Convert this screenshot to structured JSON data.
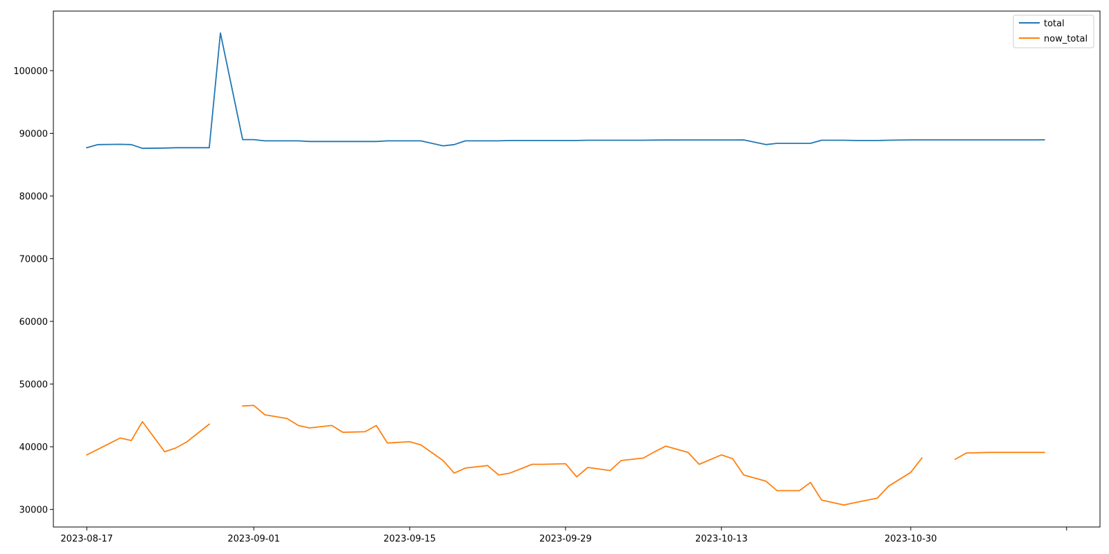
{
  "chart_data": {
    "type": "line",
    "title": "",
    "xlabel": "",
    "ylabel": "",
    "x_axis_type": "date",
    "ylim": [
      27200,
      109500
    ],
    "xlim": [
      "2023-08-14",
      "2023-11-16"
    ],
    "grid": false,
    "legend_position": "top-right",
    "x_ticks": [
      "2023-08-17",
      "2023-09-01",
      "2023-09-15",
      "2023-09-29",
      "2023-10-13",
      "2023-10-30"
    ],
    "y_ticks": [
      30000,
      40000,
      50000,
      60000,
      70000,
      80000,
      90000,
      100000
    ],
    "x": [
      "2023-08-17",
      "2023-08-18",
      "2023-08-20",
      "2023-08-21",
      "2023-08-22",
      "2023-08-24",
      "2023-08-25",
      "2023-08-26",
      "2023-08-28",
      "2023-08-29",
      "2023-08-31",
      "2023-09-01",
      "2023-09-02",
      "2023-09-04",
      "2023-09-05",
      "2023-09-06",
      "2023-09-08",
      "2023-09-09",
      "2023-09-11",
      "2023-09-12",
      "2023-09-13",
      "2023-09-15",
      "2023-09-16",
      "2023-09-18",
      "2023-09-19",
      "2023-09-20",
      "2023-09-22",
      "2023-09-23",
      "2023-09-24",
      "2023-09-26",
      "2023-09-27",
      "2023-09-29",
      "2023-09-30",
      "2023-10-01",
      "2023-10-03",
      "2023-10-04",
      "2023-10-06",
      "2023-10-07",
      "2023-10-08",
      "2023-10-10",
      "2023-10-11",
      "2023-10-13",
      "2023-10-14",
      "2023-10-15",
      "2023-10-17",
      "2023-10-18",
      "2023-10-20",
      "2023-10-21",
      "2023-10-22",
      "2023-10-24",
      "2023-10-25",
      "2023-10-27",
      "2023-10-28",
      "2023-10-30",
      "2023-10-31",
      "2023-11-01",
      "2023-11-03",
      "2023-11-04",
      "2023-11-06",
      "2023-11-07",
      "2023-11-08",
      "2023-11-10",
      "2023-11-11"
    ],
    "series": [
      {
        "name": "total",
        "color": "#1f77b4",
        "values": [
          87700,
          88200,
          88250,
          88200,
          87600,
          87650,
          87700,
          87700,
          87700,
          106000,
          89000,
          89000,
          88800,
          88800,
          88800,
          88700,
          88700,
          88700,
          88700,
          88700,
          88800,
          88800,
          88800,
          88000,
          88200,
          88800,
          88800,
          88800,
          88850,
          88850,
          88850,
          88850,
          88850,
          88900,
          88900,
          88900,
          88900,
          88920,
          88930,
          88940,
          88940,
          88940,
          88940,
          88950,
          88200,
          88400,
          88400,
          88400,
          88900,
          88900,
          88850,
          88850,
          88900,
          88950,
          88950,
          88950,
          88950,
          88950,
          88950,
          88950,
          88950,
          88950,
          88960
        ]
      },
      {
        "name": "now_total",
        "color": "#ff7f0e",
        "values": [
          38700,
          39600,
          41400,
          41000,
          44000,
          39200,
          39800,
          40800,
          43600,
          null,
          46500,
          46600,
          45100,
          44500,
          43400,
          43000,
          43400,
          42300,
          42400,
          43400,
          40600,
          40800,
          40300,
          37800,
          35800,
          36600,
          37000,
          35500,
          35800,
          37200,
          37200,
          37300,
          35200,
          36700,
          36200,
          37800,
          38200,
          39200,
          40100,
          39100,
          37200,
          38700,
          38100,
          35500,
          34500,
          33000,
          33000,
          34300,
          31500,
          30700,
          31100,
          31800,
          33700,
          35900,
          38200,
          null,
          38000,
          39000,
          39100,
          39100,
          39100,
          39100,
          39100
        ]
      }
    ]
  }
}
